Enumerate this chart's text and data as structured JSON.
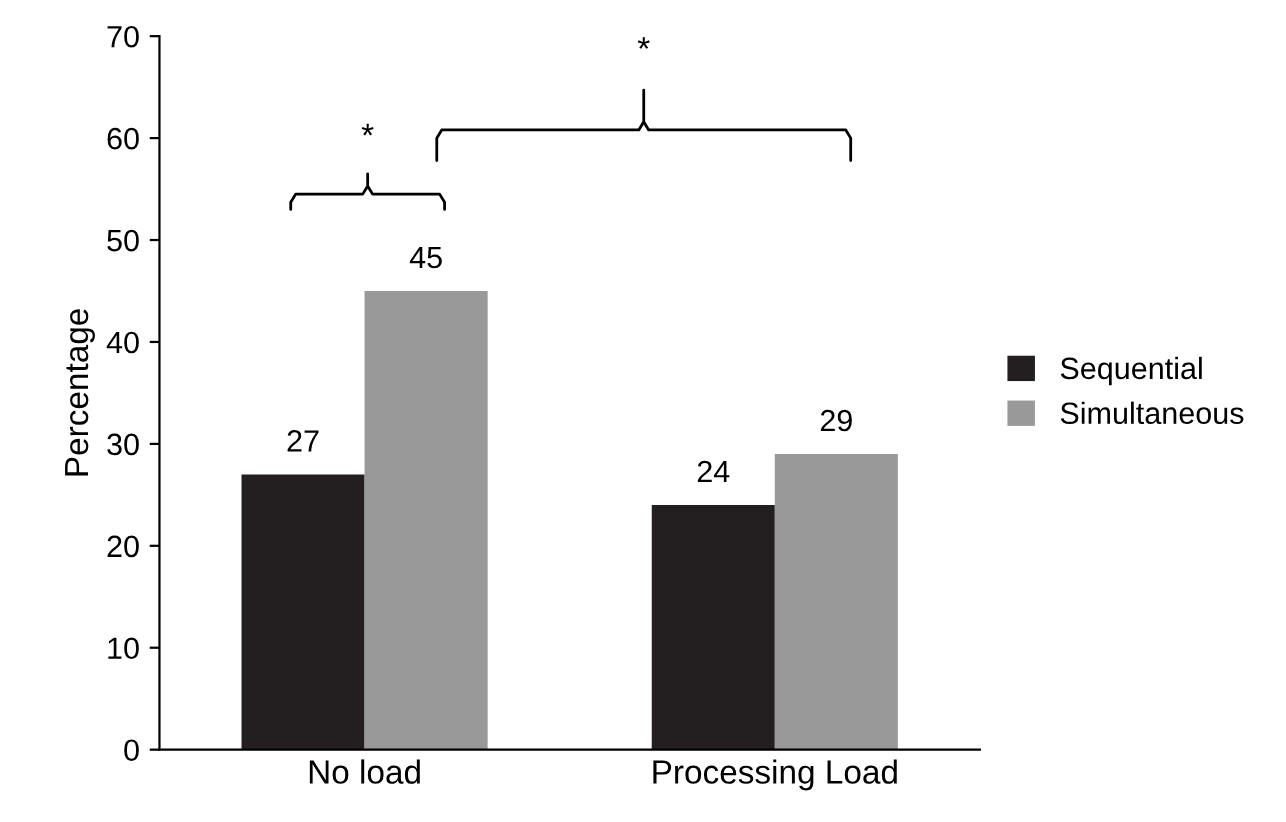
{
  "chart_data": {
    "type": "bar",
    "ylabel": "Percentage",
    "categories": [
      "No load",
      "Processing Load"
    ],
    "series": [
      {
        "name": "Sequential",
        "color": "#231f20",
        "values": [
          27,
          24
        ]
      },
      {
        "name": "Simultaneous",
        "color": "#999999",
        "values": [
          45,
          29
        ]
      }
    ],
    "ylim": [
      0,
      70
    ],
    "yticks": [
      0,
      10,
      20,
      30,
      40,
      50,
      60,
      70
    ],
    "data_labels": true,
    "grid": false,
    "legend": "right",
    "annotations": [
      "*",
      "*"
    ]
  }
}
